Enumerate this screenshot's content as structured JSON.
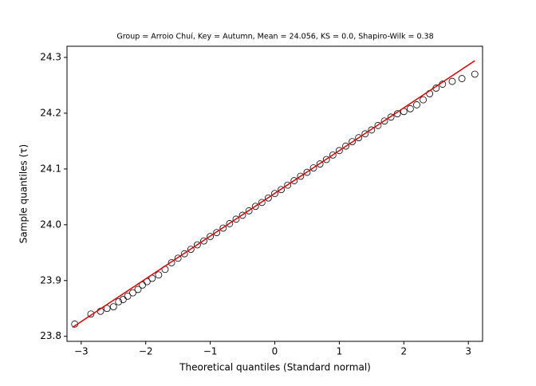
{
  "chart_data": {
    "type": "scatter",
    "title": "Group = Arroio Chuí, Key = Autumn, Mean = 24.056, KS = 0.0, Shapiro-Wilk = 0.38",
    "x_label": "Theoretical quantiles (Standard normal)",
    "y_label": "Sample quantiles (τ)",
    "xlim": [
      -3.22,
      3.22
    ],
    "ylim": [
      23.791,
      24.32
    ],
    "xticks": [
      {
        "value": -3,
        "label": "−3"
      },
      {
        "value": -2,
        "label": "−2"
      },
      {
        "value": -1,
        "label": "−1"
      },
      0,
      1,
      2,
      3
    ],
    "yticks": [
      23.8,
      23.9,
      {
        "value": 24.0,
        "label": "24.0"
      },
      24.1,
      24.2,
      24.3
    ],
    "grid": false,
    "series": [
      {
        "style": "open-circle",
        "color": "#000000",
        "x": [
          -3.1,
          -2.85,
          -2.7,
          -2.6,
          -2.5,
          -2.42,
          -2.35,
          -2.28,
          -2.2,
          -2.12,
          -2.05,
          -1.98,
          -1.9,
          -1.8,
          -1.7,
          -1.6,
          -1.5,
          -1.4,
          -1.3,
          -1.2,
          -1.1,
          -1.0,
          -0.9,
          -0.8,
          -0.7,
          -0.6,
          -0.5,
          -0.4,
          -0.3,
          -0.2,
          -0.1,
          0,
          0.1,
          0.2,
          0.3,
          0.4,
          0.5,
          0.6,
          0.7,
          0.8,
          0.9,
          1.0,
          1.1,
          1.2,
          1.3,
          1.4,
          1.5,
          1.6,
          1.7,
          1.8,
          1.9,
          2.0,
          2.1,
          2.2,
          2.3,
          2.4,
          2.5,
          2.6,
          2.75,
          2.9,
          3.1
        ],
        "values": [
          23.822,
          23.84,
          23.845,
          23.85,
          23.853,
          23.862,
          23.866,
          23.872,
          23.878,
          23.884,
          23.892,
          23.898,
          23.904,
          23.91,
          23.92,
          23.932,
          23.94,
          23.948,
          23.956,
          23.964,
          23.971,
          23.979,
          23.986,
          23.994,
          24.002,
          24.01,
          24.017,
          24.025,
          24.033,
          24.04,
          24.048,
          24.056,
          24.063,
          24.071,
          24.079,
          24.087,
          24.094,
          24.102,
          24.109,
          24.117,
          24.125,
          24.133,
          24.141,
          24.149,
          24.156,
          24.163,
          24.17,
          24.178,
          24.186,
          24.193,
          24.199,
          24.203,
          24.208,
          24.215,
          24.224,
          24.235,
          24.245,
          24.252,
          24.257,
          24.262,
          24.27
        ]
      },
      {
        "style": "line",
        "color": "#e00000",
        "x": [
          -3.135,
          3.1
        ],
        "values": [
          23.816,
          24.294
        ]
      }
    ]
  }
}
